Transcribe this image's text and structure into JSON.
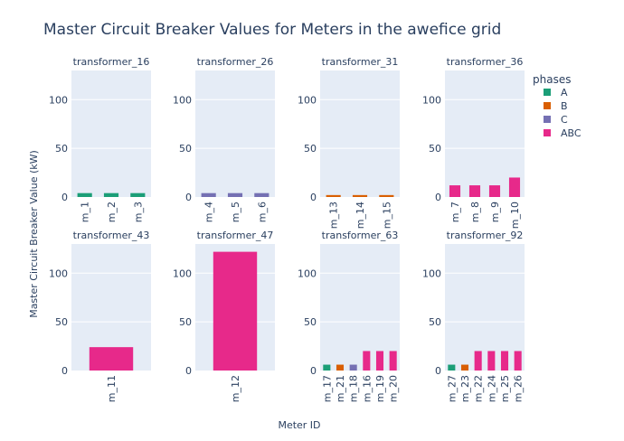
{
  "chart_data": {
    "type": "bar",
    "title": "Master Circuit Breaker Values for Meters in the awefice grid",
    "xlabel": "Meter ID",
    "ylabel": "Master Circuit Breaker Value (kW)",
    "ylim": [
      0,
      130
    ],
    "yticks": [
      0,
      50,
      100
    ],
    "grid": true,
    "legend": {
      "title": "phases",
      "placement": "top-right",
      "entries": [
        {
          "name": "A",
          "color": "#1b9e77"
        },
        {
          "name": "B",
          "color": "#d95f02"
        },
        {
          "name": "C",
          "color": "#7570b3"
        },
        {
          "name": "ABC",
          "color": "#e7298a"
        }
      ]
    },
    "panels": [
      {
        "title": "transformer_16",
        "bars": [
          {
            "meter": "m_1",
            "phase": "A",
            "value": 4
          },
          {
            "meter": "m_2",
            "phase": "A",
            "value": 4
          },
          {
            "meter": "m_3",
            "phase": "A",
            "value": 4
          }
        ]
      },
      {
        "title": "transformer_26",
        "bars": [
          {
            "meter": "m_4",
            "phase": "C",
            "value": 4
          },
          {
            "meter": "m_5",
            "phase": "C",
            "value": 4
          },
          {
            "meter": "m_6",
            "phase": "C",
            "value": 4
          }
        ]
      },
      {
        "title": "transformer_31",
        "bars": [
          {
            "meter": "m_13",
            "phase": "B",
            "value": 2
          },
          {
            "meter": "m_14",
            "phase": "B",
            "value": 2
          },
          {
            "meter": "m_15",
            "phase": "B",
            "value": 2
          }
        ]
      },
      {
        "title": "transformer_36",
        "bars": [
          {
            "meter": "m_7",
            "phase": "ABC",
            "value": 12
          },
          {
            "meter": "m_8",
            "phase": "ABC",
            "value": 12
          },
          {
            "meter": "m_9",
            "phase": "ABC",
            "value": 12
          },
          {
            "meter": "m_10",
            "phase": "ABC",
            "value": 20
          }
        ]
      },
      {
        "title": "transformer_43",
        "bars": [
          {
            "meter": "m_11",
            "phase": "ABC",
            "value": 24
          }
        ]
      },
      {
        "title": "transformer_47",
        "bars": [
          {
            "meter": "m_12",
            "phase": "ABC",
            "value": 122
          }
        ]
      },
      {
        "title": "transformer_63",
        "bars": [
          {
            "meter": "m_17",
            "phase": "A",
            "value": 6
          },
          {
            "meter": "m_21",
            "phase": "B",
            "value": 6
          },
          {
            "meter": "m_18",
            "phase": "C",
            "value": 6
          },
          {
            "meter": "m_16",
            "phase": "ABC",
            "value": 20
          },
          {
            "meter": "m_19",
            "phase": "ABC",
            "value": 20
          },
          {
            "meter": "m_20",
            "phase": "ABC",
            "value": 20
          }
        ]
      },
      {
        "title": "transformer_92",
        "bars": [
          {
            "meter": "m_27",
            "phase": "A",
            "value": 6
          },
          {
            "meter": "m_23",
            "phase": "B",
            "value": 6
          },
          {
            "meter": "m_22",
            "phase": "ABC",
            "value": 20
          },
          {
            "meter": "m_24",
            "phase": "ABC",
            "value": 20
          },
          {
            "meter": "m_25",
            "phase": "ABC",
            "value": 20
          },
          {
            "meter": "m_26",
            "phase": "ABC",
            "value": 20
          }
        ]
      }
    ]
  }
}
